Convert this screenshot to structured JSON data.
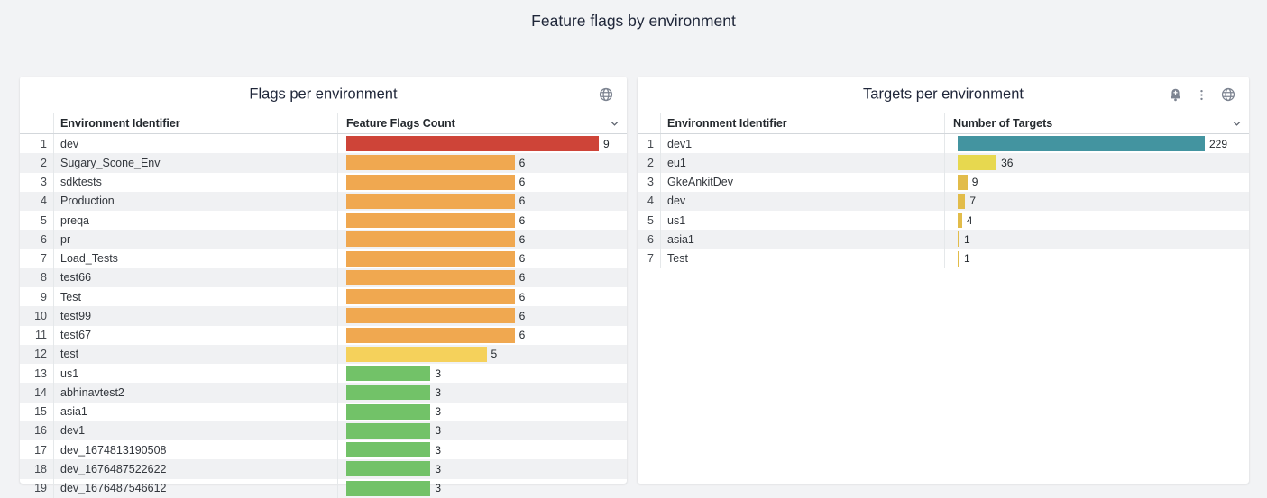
{
  "page": {
    "title": "Feature flags by environment",
    "background": "#f2f3f5"
  },
  "panels": [
    {
      "title": "Flags per environment",
      "columns": {
        "name": "Environment Identifier",
        "value": "Feature Flags Count"
      },
      "icons": [
        "globe"
      ],
      "rows": [
        {
          "n": 1,
          "name": "dev",
          "value": 9,
          "color": "#ce4438"
        },
        {
          "n": 2,
          "name": "Sugary_Scone_Env",
          "value": 6,
          "color": "#f0a850"
        },
        {
          "n": 3,
          "name": "sdktests",
          "value": 6,
          "color": "#f0a850"
        },
        {
          "n": 4,
          "name": "Production",
          "value": 6,
          "color": "#f0a850"
        },
        {
          "n": 5,
          "name": "preqa",
          "value": 6,
          "color": "#f0a850"
        },
        {
          "n": 6,
          "name": "pr",
          "value": 6,
          "color": "#f0a850"
        },
        {
          "n": 7,
          "name": "Load_Tests",
          "value": 6,
          "color": "#f0a850"
        },
        {
          "n": 8,
          "name": "test66",
          "value": 6,
          "color": "#f0a850"
        },
        {
          "n": 9,
          "name": "Test",
          "value": 6,
          "color": "#f0a850"
        },
        {
          "n": 10,
          "name": "test99",
          "value": 6,
          "color": "#f0a850"
        },
        {
          "n": 11,
          "name": "test67",
          "value": 6,
          "color": "#f0a850"
        },
        {
          "n": 12,
          "name": "test",
          "value": 5,
          "color": "#f5d15b"
        },
        {
          "n": 13,
          "name": "us1",
          "value": 3,
          "color": "#72c268"
        },
        {
          "n": 14,
          "name": "abhinavtest2",
          "value": 3,
          "color": "#72c268"
        },
        {
          "n": 15,
          "name": "asia1",
          "value": 3,
          "color": "#72c268"
        },
        {
          "n": 16,
          "name": "dev1",
          "value": 3,
          "color": "#72c268"
        },
        {
          "n": 17,
          "name": "dev_1674813190508",
          "value": 3,
          "color": "#72c268"
        },
        {
          "n": 18,
          "name": "dev_1676487522622",
          "value": 3,
          "color": "#72c268"
        },
        {
          "n": 19,
          "name": "dev_1676487546612",
          "value": 3,
          "color": "#72c268"
        }
      ]
    },
    {
      "title": "Targets per environment",
      "columns": {
        "name": "Environment Identifier",
        "value": "Number of Targets"
      },
      "icons": [
        "bell-plus",
        "kebab",
        "globe"
      ],
      "rows": [
        {
          "n": 1,
          "name": "dev1",
          "value": 229,
          "color": "#4394a0"
        },
        {
          "n": 2,
          "name": "eu1",
          "value": 36,
          "color": "#e7d84f"
        },
        {
          "n": 3,
          "name": "GkeAnkitDev",
          "value": 9,
          "color": "#e2bc4a"
        },
        {
          "n": 4,
          "name": "dev",
          "value": 7,
          "color": "#e2bc4a"
        },
        {
          "n": 5,
          "name": "us1",
          "value": 4,
          "color": "#e2bc4a"
        },
        {
          "n": 6,
          "name": "asia1",
          "value": 1,
          "color": "#e2bc4a"
        },
        {
          "n": 7,
          "name": "Test",
          "value": 1,
          "color": "#e2bc4a"
        }
      ]
    }
  ],
  "chart_data": [
    {
      "type": "bar",
      "orientation": "horizontal",
      "title": "Flags per environment",
      "categories": [
        "dev",
        "Sugary_Scone_Env",
        "sdktests",
        "Production",
        "preqa",
        "pr",
        "Load_Tests",
        "test66",
        "Test",
        "test99",
        "test67",
        "test",
        "us1",
        "abhinavtest2",
        "asia1",
        "dev1",
        "dev_1674813190508",
        "dev_1676487522622",
        "dev_1676487546612"
      ],
      "values": [
        9,
        6,
        6,
        6,
        6,
        6,
        6,
        6,
        6,
        6,
        6,
        5,
        3,
        3,
        3,
        3,
        3,
        3,
        3
      ],
      "xlabel": "Feature Flags Count",
      "ylabel": "Environment Identifier",
      "xlim": [
        0,
        9
      ],
      "grid": false,
      "legend": "none",
      "bar_colors": [
        "#ce4438",
        "#f0a850",
        "#f0a850",
        "#f0a850",
        "#f0a850",
        "#f0a850",
        "#f0a850",
        "#f0a850",
        "#f0a850",
        "#f0a850",
        "#f0a850",
        "#f5d15b",
        "#72c268",
        "#72c268",
        "#72c268",
        "#72c268",
        "#72c268",
        "#72c268",
        "#72c268"
      ]
    },
    {
      "type": "bar",
      "orientation": "horizontal",
      "title": "Targets per environment",
      "categories": [
        "dev1",
        "eu1",
        "GkeAnkitDev",
        "dev",
        "us1",
        "asia1",
        "Test"
      ],
      "values": [
        229,
        36,
        9,
        7,
        4,
        1,
        1
      ],
      "xlabel": "Number of Targets",
      "ylabel": "Environment Identifier",
      "xlim": [
        0,
        229
      ],
      "grid": false,
      "legend": "none",
      "bar_colors": [
        "#4394a0",
        "#e7d84f",
        "#e2bc4a",
        "#e2bc4a",
        "#e2bc4a",
        "#e2bc4a",
        "#e2bc4a"
      ]
    }
  ]
}
